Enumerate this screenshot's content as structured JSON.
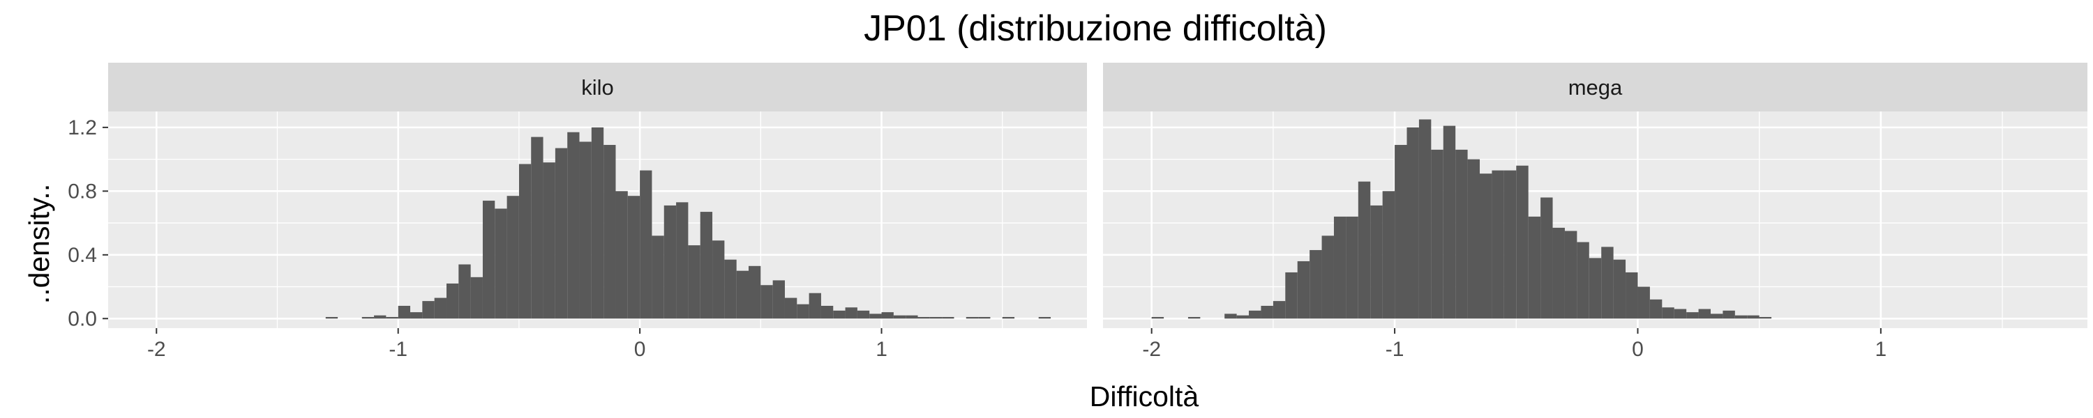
{
  "chart_data": {
    "type": "bar",
    "title": "JP01 (distribuzione difficoltà)",
    "xlabel": "Difficoltà",
    "ylabel": "..density..",
    "xlim": [
      -2.2,
      1.85
    ],
    "ylim": [
      -0.06,
      1.3
    ],
    "x_ticks": [
      -2,
      -1,
      0,
      1
    ],
    "y_ticks": [
      0.0,
      0.4,
      0.8,
      1.2
    ],
    "y_tick_labels": [
      "0.0",
      "0.4",
      "0.8",
      "1.2"
    ],
    "grid": true,
    "bin_width": 0.05,
    "colors": {
      "bar": "#595959",
      "panel": "#ebebeb",
      "strip": "#d9d9d9",
      "grid": "#ffffff"
    },
    "panels": [
      {
        "name": "kilo",
        "bin_start": -1.3,
        "values": [
          0.01,
          0.0,
          0.0,
          0.01,
          0.02,
          0.01,
          0.08,
          0.04,
          0.11,
          0.13,
          0.22,
          0.34,
          0.26,
          0.74,
          0.69,
          0.77,
          0.97,
          1.14,
          0.98,
          1.07,
          1.17,
          1.11,
          1.2,
          1.09,
          0.8,
          0.77,
          0.93,
          0.52,
          0.71,
          0.73,
          0.46,
          0.67,
          0.49,
          0.37,
          0.3,
          0.33,
          0.21,
          0.24,
          0.13,
          0.09,
          0.16,
          0.08,
          0.05,
          0.07,
          0.05,
          0.03,
          0.04,
          0.02,
          0.02,
          0.01,
          0.01,
          0.01,
          0.0,
          0.01,
          0.01,
          0.0,
          0.01,
          0.0,
          0.0,
          0.01
        ]
      },
      {
        "name": "mega",
        "bin_start": -2.0,
        "values": [
          0.01,
          0.0,
          0.0,
          0.01,
          0.0,
          0.0,
          0.03,
          0.02,
          0.05,
          0.08,
          0.11,
          0.29,
          0.36,
          0.43,
          0.52,
          0.64,
          0.64,
          0.86,
          0.71,
          0.8,
          1.09,
          1.2,
          1.25,
          1.06,
          1.21,
          1.06,
          1.0,
          0.91,
          0.93,
          0.93,
          0.96,
          0.64,
          0.76,
          0.57,
          0.55,
          0.48,
          0.38,
          0.45,
          0.37,
          0.29,
          0.2,
          0.12,
          0.07,
          0.06,
          0.04,
          0.06,
          0.03,
          0.05,
          0.02,
          0.02,
          0.01
        ]
      }
    ]
  }
}
